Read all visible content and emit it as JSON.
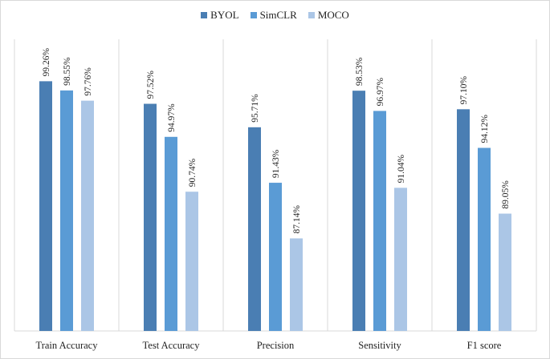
{
  "chart_data": {
    "type": "bar",
    "categories": [
      "Train Accuracy",
      "Test Accuracy",
      "Precision",
      "Sensitivity",
      "F1 score"
    ],
    "series": [
      {
        "name": "BYOL",
        "color": "#4a7eb3",
        "values": [
          99.26,
          97.52,
          95.71,
          98.53,
          97.1
        ],
        "labels": [
          "99.26%",
          "97.52%",
          "95.71%",
          "98.53%",
          "97.10%"
        ]
      },
      {
        "name": "SimCLR",
        "color": "#5a9bd5",
        "values": [
          98.55,
          94.97,
          91.43,
          96.97,
          94.12
        ],
        "labels": [
          "98.55%",
          "94.97%",
          "91.43%",
          "96.97%",
          "94.12%"
        ]
      },
      {
        "name": "MOCO",
        "color": "#abc6e6",
        "values": [
          97.76,
          90.74,
          87.14,
          91.04,
          89.05
        ],
        "labels": [
          "97.76%",
          "90.74%",
          "87.14%",
          "91.04%",
          "89.05%"
        ]
      }
    ],
    "ylim": [
      80,
      100
    ],
    "grid": false,
    "category_separators": true,
    "legend_position": "top-center",
    "title": "",
    "xlabel": "",
    "ylabel": ""
  }
}
